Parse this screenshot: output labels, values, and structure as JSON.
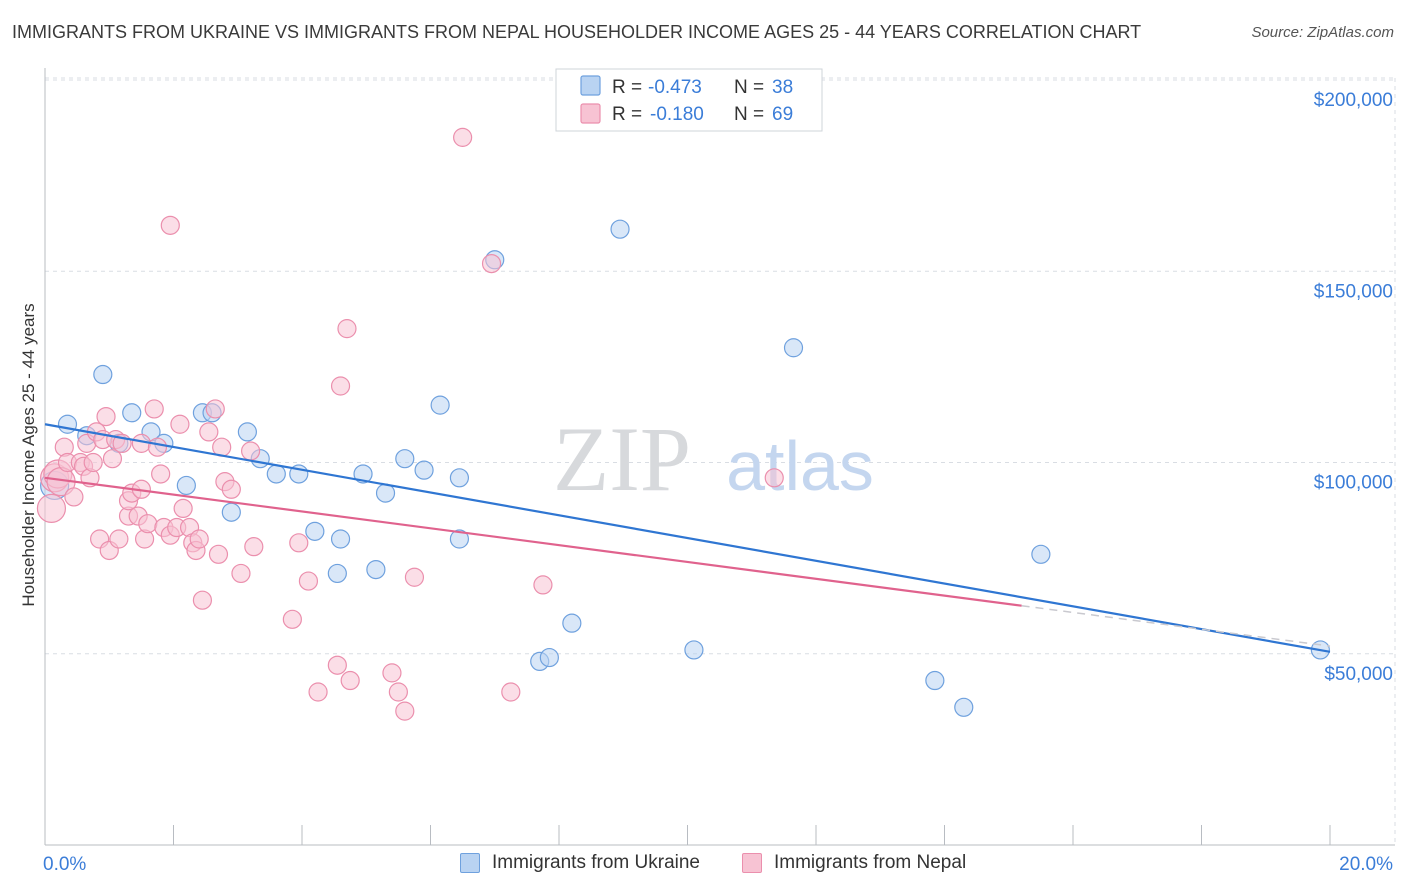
{
  "title": "IMMIGRANTS FROM UKRAINE VS IMMIGRANTS FROM NEPAL HOUSEHOLDER INCOME AGES 25 - 44 YEARS CORRELATION CHART",
  "source": "Source: ZipAtlas.com",
  "watermark": {
    "zip": "ZIP",
    "atlas": "atlas"
  },
  "colors": {
    "ukraine_fill": "#b9d3f2",
    "ukraine_stroke": "#6fa1de",
    "ukraine_line": "#2f76d2",
    "nepal_fill": "#f7c3d3",
    "nepal_stroke": "#eb8fad",
    "nepal_line": "#e0628d",
    "value_text": "#3b7dd8",
    "grid": "#d9dde3"
  },
  "legend_top": {
    "rows": [
      {
        "series": "ukraine",
        "r_label": "R =",
        "r_value": "-0.473",
        "n_label": "N =",
        "n_value": "38"
      },
      {
        "series": "nepal",
        "r_label": "R =",
        "r_value": "-0.180",
        "n_label": "N =",
        "n_value": "69"
      }
    ]
  },
  "chart_data": {
    "type": "scatter",
    "title": "IMMIGRANTS FROM UKRAINE VS IMMIGRANTS FROM NEPAL HOUSEHOLDER INCOME AGES 25 - 44 YEARS CORRELATION CHART",
    "xlabel": "",
    "ylabel": "Householder Income Ages 25 - 44 years",
    "xlim": [
      0,
      20
    ],
    "ylim": [
      0,
      200000
    ],
    "x_tick_labels": [
      {
        "value": 0,
        "label": "0.0%"
      },
      {
        "value": 20,
        "label": "20.0%"
      }
    ],
    "y_tick_labels": [
      {
        "value": 200000,
        "label": "$200,000"
      },
      {
        "value": 150000,
        "label": "$150,000"
      },
      {
        "value": 100000,
        "label": "$100,000"
      },
      {
        "value": 50000,
        "label": "$50,000"
      }
    ],
    "x_minor_ticks": [
      0,
      2,
      4,
      6,
      8,
      10,
      12,
      14,
      16,
      18,
      20
    ],
    "grid": true,
    "legend_position": "top-center",
    "series": [
      {
        "name": "Immigrants from Ukraine",
        "key": "ukraine",
        "r": -0.473,
        "n": 38,
        "trend": {
          "x0": 0,
          "y0": 110000,
          "x1": 20,
          "y1": 50500,
          "solid_until": 20
        },
        "points": [
          [
            0.15,
            94000
          ],
          [
            0.35,
            110000
          ],
          [
            0.65,
            107000
          ],
          [
            0.9,
            123000
          ],
          [
            1.15,
            105000
          ],
          [
            1.35,
            113000
          ],
          [
            1.65,
            108000
          ],
          [
            1.85,
            105000
          ],
          [
            2.2,
            94000
          ],
          [
            2.45,
            113000
          ],
          [
            2.6,
            113000
          ],
          [
            2.9,
            87000
          ],
          [
            3.15,
            108000
          ],
          [
            3.35,
            101000
          ],
          [
            3.6,
            97000
          ],
          [
            3.95,
            97000
          ],
          [
            4.2,
            82000
          ],
          [
            4.55,
            71000
          ],
          [
            4.6,
            80000
          ],
          [
            4.95,
            97000
          ],
          [
            5.15,
            72000
          ],
          [
            5.3,
            92000
          ],
          [
            5.6,
            101000
          ],
          [
            5.9,
            98000
          ],
          [
            6.15,
            115000
          ],
          [
            6.45,
            96000
          ],
          [
            6.45,
            80000
          ],
          [
            7.0,
            153000
          ],
          [
            7.7,
            48000
          ],
          [
            7.85,
            49000
          ],
          [
            8.2,
            58000
          ],
          [
            8.95,
            161000
          ],
          [
            10.1,
            51000
          ],
          [
            11.65,
            130000
          ],
          [
            13.85,
            43000
          ],
          [
            14.3,
            36000
          ],
          [
            15.5,
            76000
          ],
          [
            19.85,
            51000
          ]
        ]
      },
      {
        "name": "Immigrants from Nepal",
        "key": "nepal",
        "r": -0.18,
        "n": 69,
        "trend": {
          "x0": 0,
          "y0": 96000,
          "x1": 20,
          "y1": 52000,
          "solid_until": 15.2
        },
        "points": [
          [
            0.1,
            88000
          ],
          [
            0.15,
            96000
          ],
          [
            0.2,
            97000
          ],
          [
            0.25,
            95000
          ],
          [
            0.3,
            104000
          ],
          [
            0.35,
            100000
          ],
          [
            0.45,
            91000
          ],
          [
            0.55,
            100000
          ],
          [
            0.6,
            99000
          ],
          [
            0.65,
            105000
          ],
          [
            0.7,
            96000
          ],
          [
            0.75,
            100000
          ],
          [
            0.8,
            108000
          ],
          [
            0.85,
            80000
          ],
          [
            0.9,
            106000
          ],
          [
            0.95,
            112000
          ],
          [
            1.0,
            77000
          ],
          [
            1.05,
            101000
          ],
          [
            1.1,
            106000
          ],
          [
            1.15,
            80000
          ],
          [
            1.2,
            105000
          ],
          [
            1.3,
            86000
          ],
          [
            1.3,
            90000
          ],
          [
            1.35,
            92000
          ],
          [
            1.45,
            86000
          ],
          [
            1.5,
            105000
          ],
          [
            1.5,
            93000
          ],
          [
            1.55,
            80000
          ],
          [
            1.6,
            84000
          ],
          [
            1.7,
            114000
          ],
          [
            1.75,
            104000
          ],
          [
            1.8,
            97000
          ],
          [
            1.85,
            83000
          ],
          [
            1.95,
            81000
          ],
          [
            1.95,
            162000
          ],
          [
            2.05,
            83000
          ],
          [
            2.1,
            110000
          ],
          [
            2.15,
            88000
          ],
          [
            2.25,
            83000
          ],
          [
            2.3,
            79000
          ],
          [
            2.35,
            77000
          ],
          [
            2.4,
            80000
          ],
          [
            2.45,
            64000
          ],
          [
            2.55,
            108000
          ],
          [
            2.65,
            114000
          ],
          [
            2.7,
            76000
          ],
          [
            2.75,
            104000
          ],
          [
            2.8,
            95000
          ],
          [
            2.9,
            93000
          ],
          [
            3.05,
            71000
          ],
          [
            3.2,
            103000
          ],
          [
            3.25,
            78000
          ],
          [
            3.85,
            59000
          ],
          [
            3.95,
            79000
          ],
          [
            4.1,
            69000
          ],
          [
            4.25,
            40000
          ],
          [
            4.55,
            47000
          ],
          [
            4.6,
            120000
          ],
          [
            4.7,
            135000
          ],
          [
            4.75,
            43000
          ],
          [
            5.4,
            45000
          ],
          [
            5.5,
            40000
          ],
          [
            5.6,
            35000
          ],
          [
            5.75,
            70000
          ],
          [
            6.5,
            185000
          ],
          [
            6.95,
            152000
          ],
          [
            7.25,
            40000
          ],
          [
            7.75,
            68000
          ],
          [
            11.35,
            96000
          ]
        ]
      }
    ]
  },
  "legend_bottom": [
    {
      "series": "ukraine",
      "label": "Immigrants from Ukraine"
    },
    {
      "series": "nepal",
      "label": "Immigrants from Nepal"
    }
  ]
}
